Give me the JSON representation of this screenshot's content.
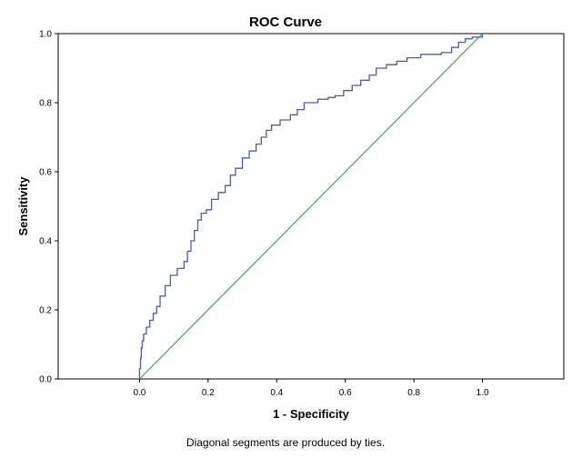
{
  "chart_data": {
    "type": "line",
    "title": "ROC Curve",
    "xlabel": "1 - Specificity",
    "ylabel": "Sensitivity",
    "xlim": [
      -0.237,
      1.237
    ],
    "ylim": [
      0,
      1
    ],
    "x_ticks": [
      "0.0",
      "0.2",
      "0.4",
      "0.6",
      "0.8",
      "1.0"
    ],
    "y_ticks": [
      "0.0",
      "0.2",
      "0.4",
      "0.6",
      "0.8",
      "1.0"
    ],
    "grid": false,
    "footnote": "Diagonal segments are produced by ties.",
    "series": [
      {
        "color": "#4a5fa1",
        "step": true,
        "points": [
          [
            0.0,
            0.0
          ],
          [
            0.0,
            0.03
          ],
          [
            0.003,
            0.06
          ],
          [
            0.005,
            0.09
          ],
          [
            0.008,
            0.11
          ],
          [
            0.012,
            0.13
          ],
          [
            0.02,
            0.15
          ],
          [
            0.03,
            0.17
          ],
          [
            0.04,
            0.19
          ],
          [
            0.05,
            0.21
          ],
          [
            0.06,
            0.24
          ],
          [
            0.075,
            0.27
          ],
          [
            0.09,
            0.3
          ],
          [
            0.11,
            0.32
          ],
          [
            0.13,
            0.34
          ],
          [
            0.14,
            0.37
          ],
          [
            0.15,
            0.4
          ],
          [
            0.16,
            0.43
          ],
          [
            0.17,
            0.46
          ],
          [
            0.18,
            0.48
          ],
          [
            0.195,
            0.49
          ],
          [
            0.21,
            0.52
          ],
          [
            0.23,
            0.54
          ],
          [
            0.25,
            0.56
          ],
          [
            0.265,
            0.59
          ],
          [
            0.28,
            0.61
          ],
          [
            0.3,
            0.64
          ],
          [
            0.32,
            0.66
          ],
          [
            0.34,
            0.68
          ],
          [
            0.355,
            0.7
          ],
          [
            0.37,
            0.72
          ],
          [
            0.385,
            0.735
          ],
          [
            0.41,
            0.75
          ],
          [
            0.44,
            0.765
          ],
          [
            0.46,
            0.78
          ],
          [
            0.48,
            0.8
          ],
          [
            0.52,
            0.81
          ],
          [
            0.55,
            0.815
          ],
          [
            0.57,
            0.82
          ],
          [
            0.595,
            0.835
          ],
          [
            0.62,
            0.85
          ],
          [
            0.645,
            0.865
          ],
          [
            0.67,
            0.88
          ],
          [
            0.69,
            0.9
          ],
          [
            0.72,
            0.91
          ],
          [
            0.75,
            0.92
          ],
          [
            0.78,
            0.93
          ],
          [
            0.82,
            0.94
          ],
          [
            0.88,
            0.945
          ],
          [
            0.91,
            0.96
          ],
          [
            0.93,
            0.975
          ],
          [
            0.95,
            0.985
          ],
          [
            0.97,
            0.99
          ],
          [
            1.0,
            1.0
          ]
        ]
      },
      {
        "color": "#3aa855",
        "step": false,
        "points": [
          [
            0.0,
            0.0
          ],
          [
            1.0,
            1.0
          ]
        ]
      }
    ]
  }
}
